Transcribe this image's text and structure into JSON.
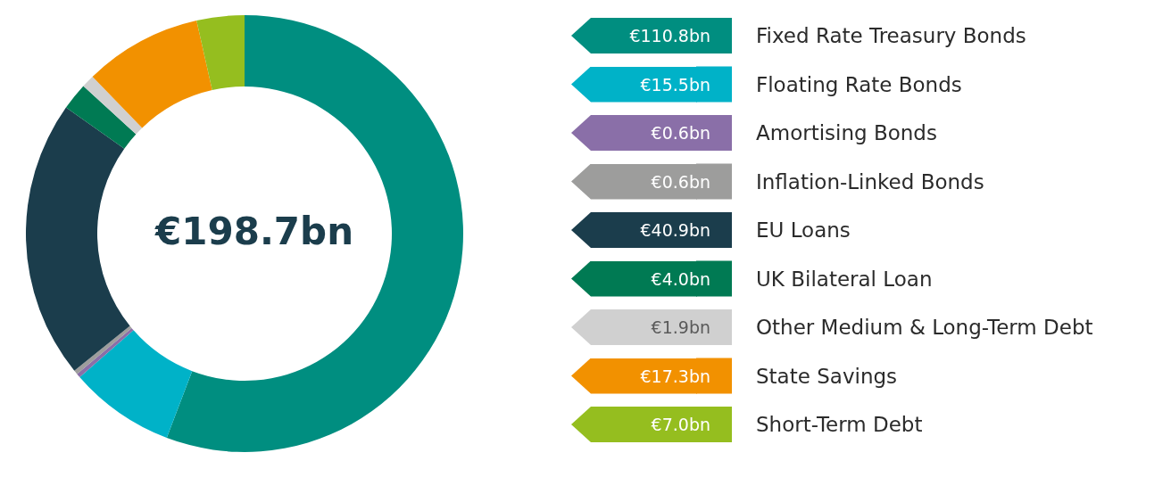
{
  "chart_data": {
    "type": "donut",
    "categories": [
      "Fixed Rate Treasury Bonds",
      "Floating Rate Bonds",
      "Amortising Bonds",
      "Inflation-Linked Bonds",
      "EU Loans",
      "UK Bilateral Loan",
      "Other Medium & Long-Term Debt",
      "State Savings",
      "Short-Term Debt"
    ],
    "values": [
      110.8,
      15.5,
      0.6,
      0.6,
      40.9,
      4.0,
      1.9,
      17.3,
      7.0
    ],
    "value_labels": [
      "€110.8bn",
      "€15.5bn",
      "€0.6bn",
      "€0.6bn",
      "€40.9bn",
      "€4.0bn",
      "€1.9bn",
      "€17.3bn",
      "€7.0bn"
    ],
    "colors": [
      "#008e80",
      "#00b2c8",
      "#8a6fa8",
      "#9d9d9c",
      "#1b3d4c",
      "#007a53",
      "#d0d0d0",
      "#f29100",
      "#95be1f"
    ],
    "annotations": [
      "€198.7bn"
    ],
    "legend": "right"
  }
}
